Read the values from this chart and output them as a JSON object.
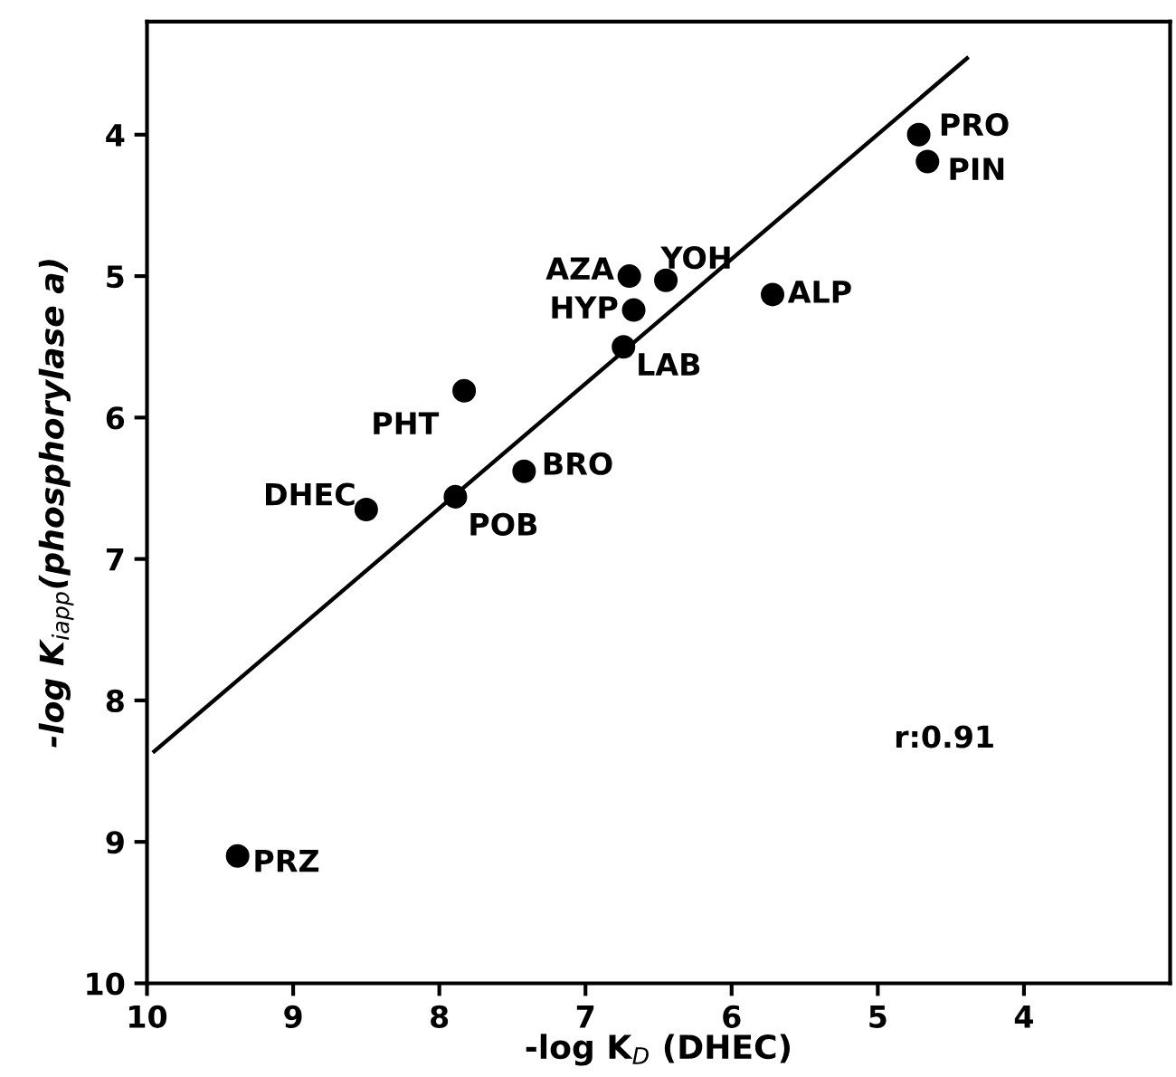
{
  "chart_data": {
    "type": "scatter",
    "xlabel": "-log K$_{D}$ (DHEC)",
    "ylabel": "-log K$_{iapp}$(phosphorylase a)",
    "annotations": [
      "r:0.91"
    ],
    "xlim": [
      10,
      3
    ],
    "ylim": [
      10,
      3.2
    ],
    "xticks": [
      10,
      9,
      8,
      7,
      6,
      5,
      4
    ],
    "yticks": [
      4,
      5,
      6,
      7,
      8,
      9,
      10
    ],
    "grid": false,
    "legend": false,
    "series": [
      {
        "marker": "circle",
        "color": "#000000",
        "x": [
          4.72,
          4.66,
          6.7,
          6.45,
          6.67,
          6.74,
          5.72,
          7.83,
          7.42,
          7.89,
          8.5,
          9.38
        ],
        "values": [
          4.0,
          4.19,
          5.0,
          5.03,
          5.24,
          5.5,
          5.13,
          5.81,
          6.38,
          6.56,
          6.65,
          9.1
        ],
        "value_labels": [
          "PRO",
          "PIN",
          "AZA",
          "YOH",
          "HYP",
          "LAB",
          "ALP",
          "PHT",
          "BRO",
          "POB",
          "DHEC",
          "PRZ"
        ]
      },
      {
        "type": "line",
        "line_style": "solid",
        "marker": "none",
        "color": "#000000",
        "x": [
          9.95,
          4.39
        ],
        "values": [
          8.36,
          3.46
        ]
      }
    ]
  }
}
